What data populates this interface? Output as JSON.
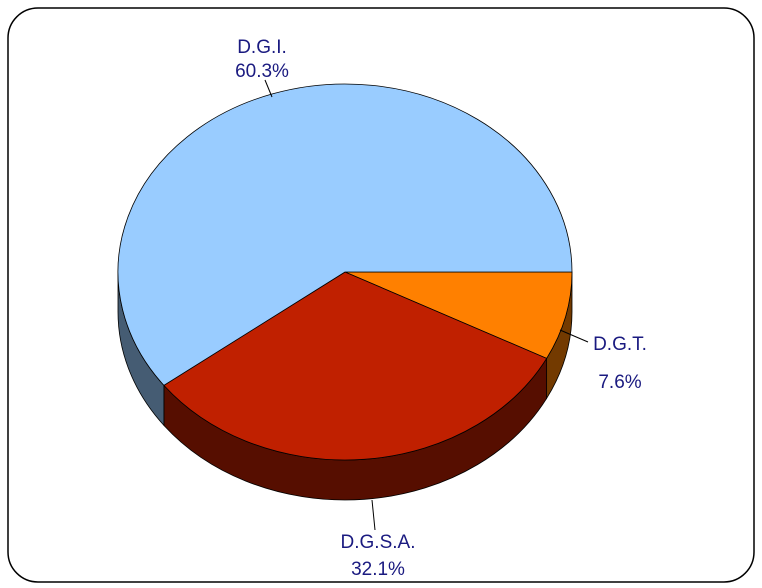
{
  "chart_data": {
    "type": "pie",
    "categories": [
      "D.G.T.",
      "D.G.S.A.",
      "D.G.I."
    ],
    "values": [
      7.6,
      32.1,
      60.3
    ],
    "value_labels": [
      "7.6%",
      "32.1%",
      "60.3%"
    ],
    "colors": [
      "#ff8000",
      "#c02000",
      "#99ccff"
    ]
  }
}
